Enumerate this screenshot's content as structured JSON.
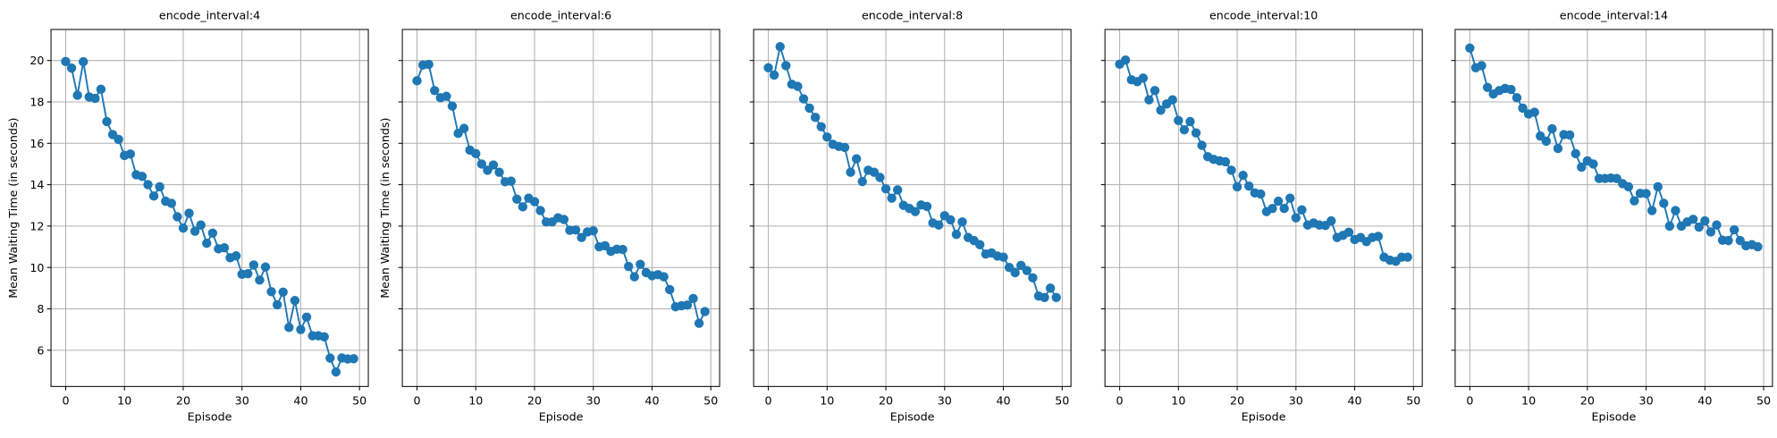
{
  "chart_data": [
    {
      "type": "line",
      "title": "encode_interval:4",
      "xlabel": "Episode",
      "ylabel": "Mean Waiting Time (in seconds)",
      "xlim": [
        -2.5,
        51.5
      ],
      "ylim": [
        4.25,
        21.5
      ],
      "xticks": [
        0,
        10,
        20,
        30,
        40,
        50
      ],
      "yticks": [
        6,
        8,
        10,
        12,
        14,
        16,
        18,
        20
      ],
      "grid": true,
      "series": [
        {
          "color": "#1f77b4",
          "marker": "circle",
          "x": [
            0,
            1,
            2,
            3,
            4,
            5,
            6,
            7,
            8,
            9,
            10,
            11,
            12,
            13,
            14,
            15,
            16,
            17,
            18,
            19,
            20,
            21,
            22,
            23,
            24,
            25,
            26,
            27,
            28,
            29,
            30,
            31,
            32,
            33,
            34,
            35,
            36,
            37,
            38,
            39,
            40,
            41,
            42,
            43,
            44,
            45,
            46,
            47,
            48,
            49
          ],
          "y": [
            19.95,
            19.63,
            18.32,
            19.94,
            18.24,
            18.17,
            18.61,
            17.05,
            16.42,
            16.19,
            15.41,
            15.48,
            14.48,
            14.4,
            14.0,
            13.45,
            13.9,
            13.2,
            13.1,
            12.45,
            11.9,
            12.62,
            11.75,
            12.05,
            11.17,
            11.66,
            10.9,
            10.95,
            10.47,
            10.56,
            9.67,
            9.7,
            10.12,
            9.39,
            10.02,
            8.83,
            8.2,
            8.81,
            7.1,
            8.4,
            7.0,
            7.6,
            6.7,
            6.7,
            6.65,
            5.62,
            4.95,
            5.63,
            5.58,
            5.59
          ]
        }
      ]
    },
    {
      "type": "line",
      "title": "encode_interval:6",
      "xlabel": "Episode",
      "ylabel": "Mean Waiting Time (in seconds)",
      "xlim": [
        -2.5,
        51.5
      ],
      "ylim": [
        4.25,
        21.5
      ],
      "xticks": [
        0,
        10,
        20,
        30,
        40,
        50
      ],
      "yticks": [
        6,
        8,
        10,
        12,
        14,
        16,
        18,
        20
      ],
      "grid": true,
      "series": [
        {
          "color": "#1f77b4",
          "marker": "circle",
          "x": [
            0,
            1,
            2,
            3,
            4,
            5,
            6,
            7,
            8,
            9,
            10,
            11,
            12,
            13,
            14,
            15,
            16,
            17,
            18,
            19,
            20,
            21,
            22,
            23,
            24,
            25,
            26,
            27,
            28,
            29,
            30,
            31,
            32,
            33,
            34,
            35,
            36,
            37,
            38,
            39,
            40,
            41,
            42,
            43,
            44,
            45,
            46,
            47,
            48,
            49
          ],
          "y": [
            19.02,
            19.78,
            19.81,
            18.55,
            18.2,
            18.27,
            17.8,
            16.48,
            16.72,
            15.67,
            15.5,
            15.0,
            14.7,
            14.95,
            14.6,
            14.14,
            14.17,
            13.3,
            12.93,
            13.35,
            13.18,
            12.75,
            12.2,
            12.2,
            12.4,
            12.32,
            11.8,
            11.81,
            11.45,
            11.72,
            11.77,
            11.0,
            11.05,
            10.78,
            10.88,
            10.87,
            10.05,
            9.55,
            10.15,
            9.75,
            9.6,
            9.65,
            9.55,
            8.93,
            8.1,
            8.15,
            8.18,
            8.5,
            7.3,
            7.87
          ]
        }
      ]
    },
    {
      "type": "line",
      "title": "encode_interval:8",
      "xlabel": "Episode",
      "ylabel": "",
      "xlim": [
        -2.5,
        51.5
      ],
      "ylim": [
        4.25,
        21.5
      ],
      "xticks": [
        0,
        10,
        20,
        30,
        40,
        50
      ],
      "yticks": [
        6,
        8,
        10,
        12,
        14,
        16,
        18,
        20
      ],
      "grid": true,
      "series": [
        {
          "color": "#1f77b4",
          "marker": "circle",
          "x": [
            0,
            1,
            2,
            3,
            4,
            5,
            6,
            7,
            8,
            9,
            10,
            11,
            12,
            13,
            14,
            15,
            16,
            17,
            18,
            19,
            20,
            21,
            22,
            23,
            24,
            25,
            26,
            27,
            28,
            29,
            30,
            31,
            32,
            33,
            34,
            35,
            36,
            37,
            38,
            39,
            40,
            41,
            42,
            43,
            44,
            45,
            46,
            47,
            48,
            49
          ],
          "y": [
            19.65,
            19.3,
            20.67,
            19.75,
            18.85,
            18.75,
            18.15,
            17.7,
            17.25,
            16.8,
            16.3,
            15.95,
            15.85,
            15.8,
            14.6,
            15.25,
            14.15,
            14.7,
            14.6,
            14.35,
            13.8,
            13.35,
            13.75,
            13.0,
            12.85,
            12.7,
            13.02,
            12.95,
            12.15,
            12.05,
            12.5,
            12.3,
            11.6,
            12.2,
            11.45,
            11.3,
            11.1,
            10.65,
            10.7,
            10.55,
            10.5,
            10.0,
            9.75,
            10.1,
            9.85,
            9.5,
            8.62,
            8.55,
            9.0,
            8.55
          ]
        }
      ]
    },
    {
      "type": "line",
      "title": "encode_interval:10",
      "xlabel": "Episode",
      "ylabel": "",
      "xlim": [
        -2.5,
        51.5
      ],
      "ylim": [
        4.25,
        21.5
      ],
      "xticks": [
        0,
        10,
        20,
        30,
        40,
        50
      ],
      "yticks": [
        6,
        8,
        10,
        12,
        14,
        16,
        18,
        20
      ],
      "grid": true,
      "series": [
        {
          "color": "#1f77b4",
          "marker": "circle",
          "x": [
            0,
            1,
            2,
            3,
            4,
            5,
            6,
            7,
            8,
            9,
            10,
            11,
            12,
            13,
            14,
            15,
            16,
            17,
            18,
            19,
            20,
            21,
            22,
            23,
            24,
            25,
            26,
            27,
            28,
            29,
            30,
            31,
            32,
            33,
            34,
            35,
            36,
            37,
            38,
            39,
            40,
            41,
            42,
            43,
            44,
            45,
            46,
            47,
            48,
            49
          ],
          "y": [
            19.82,
            20.02,
            19.07,
            18.98,
            19.15,
            18.1,
            18.55,
            17.6,
            17.9,
            18.1,
            17.1,
            16.65,
            17.05,
            16.5,
            15.9,
            15.35,
            15.22,
            15.15,
            15.11,
            14.7,
            13.9,
            14.45,
            13.93,
            13.6,
            13.55,
            12.7,
            12.85,
            13.2,
            12.85,
            13.35,
            12.4,
            12.78,
            12.05,
            12.15,
            12.05,
            12.03,
            12.25,
            11.45,
            11.55,
            11.7,
            11.35,
            11.45,
            11.25,
            11.45,
            11.5,
            10.5,
            10.35,
            10.3,
            10.5,
            10.5
          ]
        }
      ]
    },
    {
      "type": "line",
      "title": "encode_interval:14",
      "xlabel": "Episode",
      "ylabel": "",
      "xlim": [
        -2.5,
        51.5
      ],
      "ylim": [
        4.25,
        21.5
      ],
      "xticks": [
        0,
        10,
        20,
        30,
        40,
        50
      ],
      "yticks": [
        6,
        8,
        10,
        12,
        14,
        16,
        18,
        20
      ],
      "grid": true,
      "series": [
        {
          "color": "#1f77b4",
          "marker": "circle",
          "x": [
            0,
            1,
            2,
            3,
            4,
            5,
            6,
            7,
            8,
            9,
            10,
            11,
            12,
            13,
            14,
            15,
            16,
            17,
            18,
            19,
            20,
            21,
            22,
            23,
            24,
            25,
            26,
            27,
            28,
            29,
            30,
            31,
            32,
            33,
            34,
            35,
            36,
            37,
            38,
            39,
            40,
            41,
            42,
            43,
            44,
            45,
            46,
            47,
            48,
            49
          ],
          "y": [
            20.6,
            19.65,
            19.75,
            18.7,
            18.38,
            18.55,
            18.65,
            18.6,
            18.2,
            17.7,
            17.42,
            17.5,
            16.35,
            16.1,
            16.7,
            15.75,
            16.42,
            16.4,
            15.5,
            14.85,
            15.15,
            15.0,
            14.3,
            14.3,
            14.32,
            14.3,
            14.05,
            13.9,
            13.22,
            13.58,
            13.57,
            12.75,
            13.9,
            13.1,
            12.0,
            12.75,
            12.0,
            12.2,
            12.33,
            11.95,
            12.25,
            11.72,
            12.05,
            11.32,
            11.3,
            11.82,
            11.3,
            11.05,
            11.1,
            11.0
          ]
        }
      ]
    }
  ]
}
